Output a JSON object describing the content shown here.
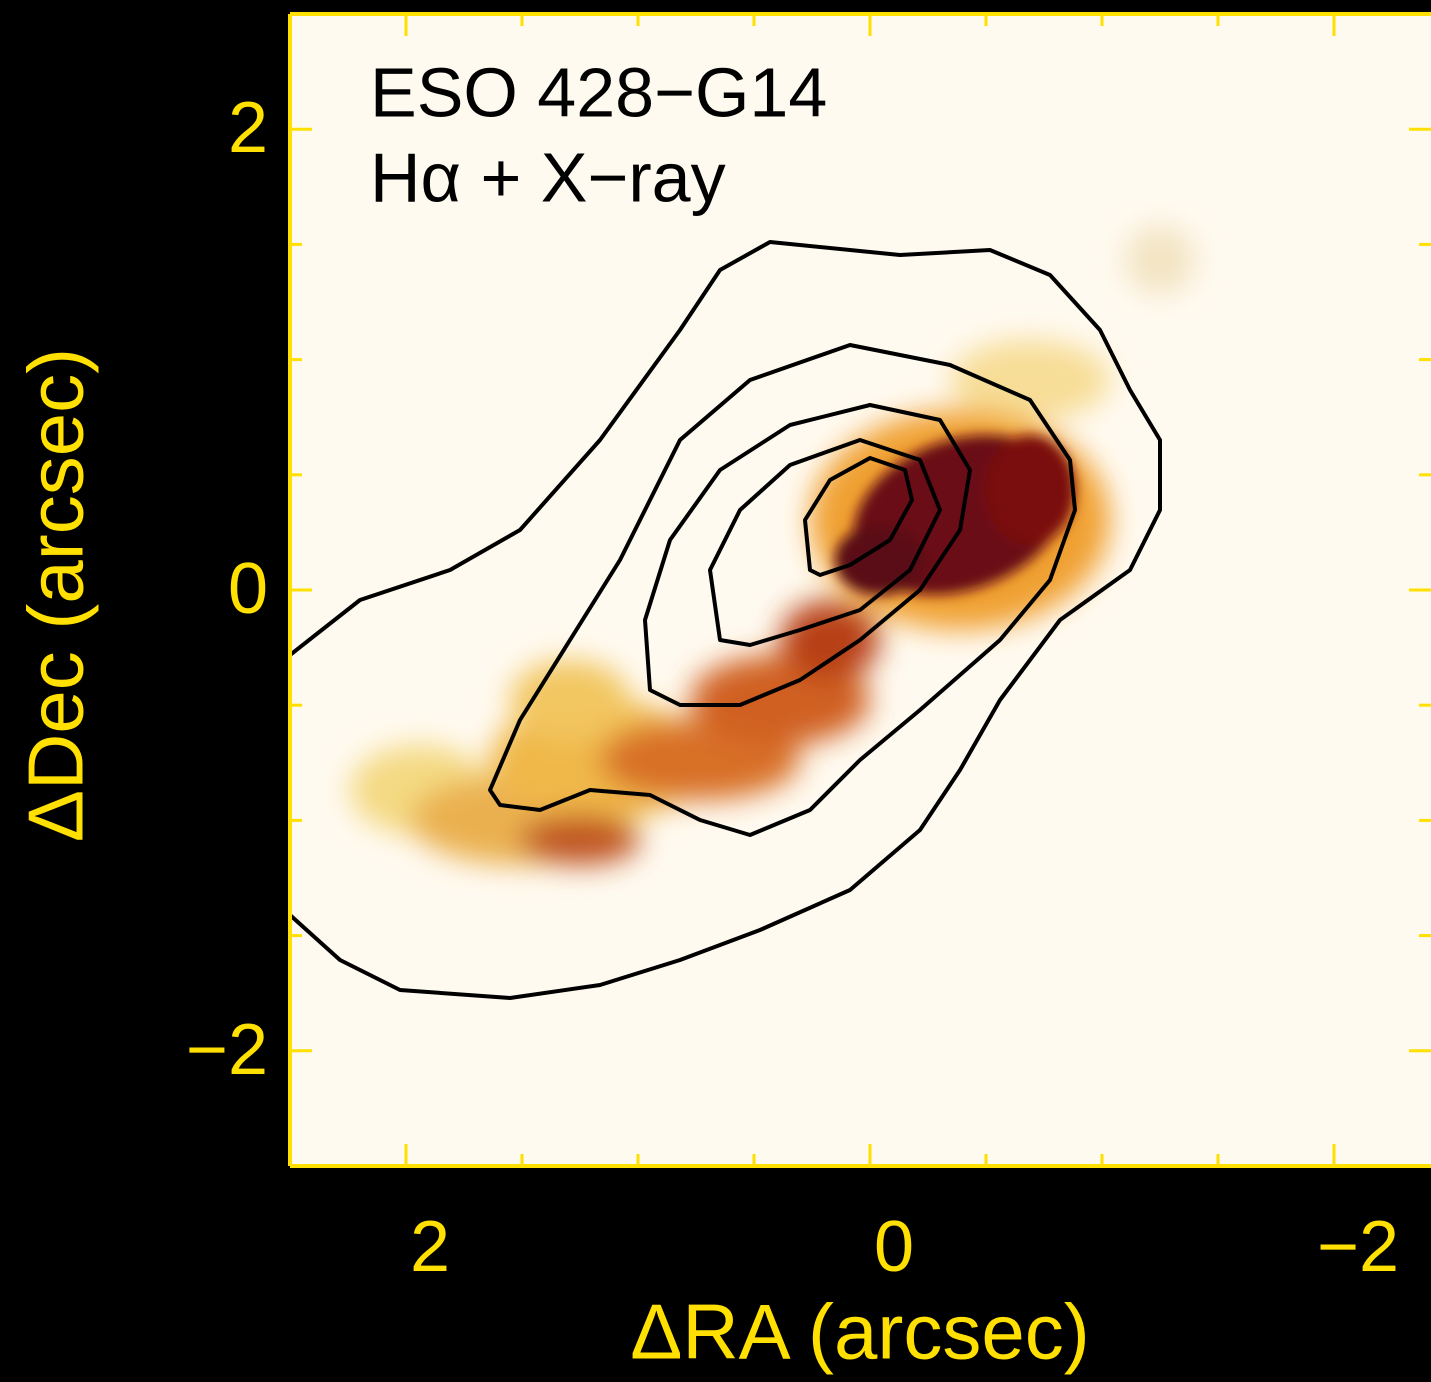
{
  "chart_data": {
    "type": "image",
    "title": "ESO 428−G14",
    "subtitle": "Hα + X−ray",
    "x_label": "ΔRA (arcsec)",
    "y_label": "ΔDec (arcsec)",
    "xlim": [
      2.5,
      -2.42
    ],
    "ylim": [
      -2.5,
      2.5
    ],
    "xticks": [
      2,
      0,
      {
        "value": -2,
        "label": "−2"
      }
    ],
    "yticks": [
      {
        "value": -2,
        "label": "−2"
      },
      0,
      2
    ],
    "xticks_minor": [
      1.5,
      1,
      0.5,
      -0.5,
      -1,
      -1.5
    ],
    "yticks_minor": [
      -1.5,
      -1,
      -0.5,
      0.5,
      1,
      1.5
    ],
    "axis_color": "#ffe000"
  }
}
